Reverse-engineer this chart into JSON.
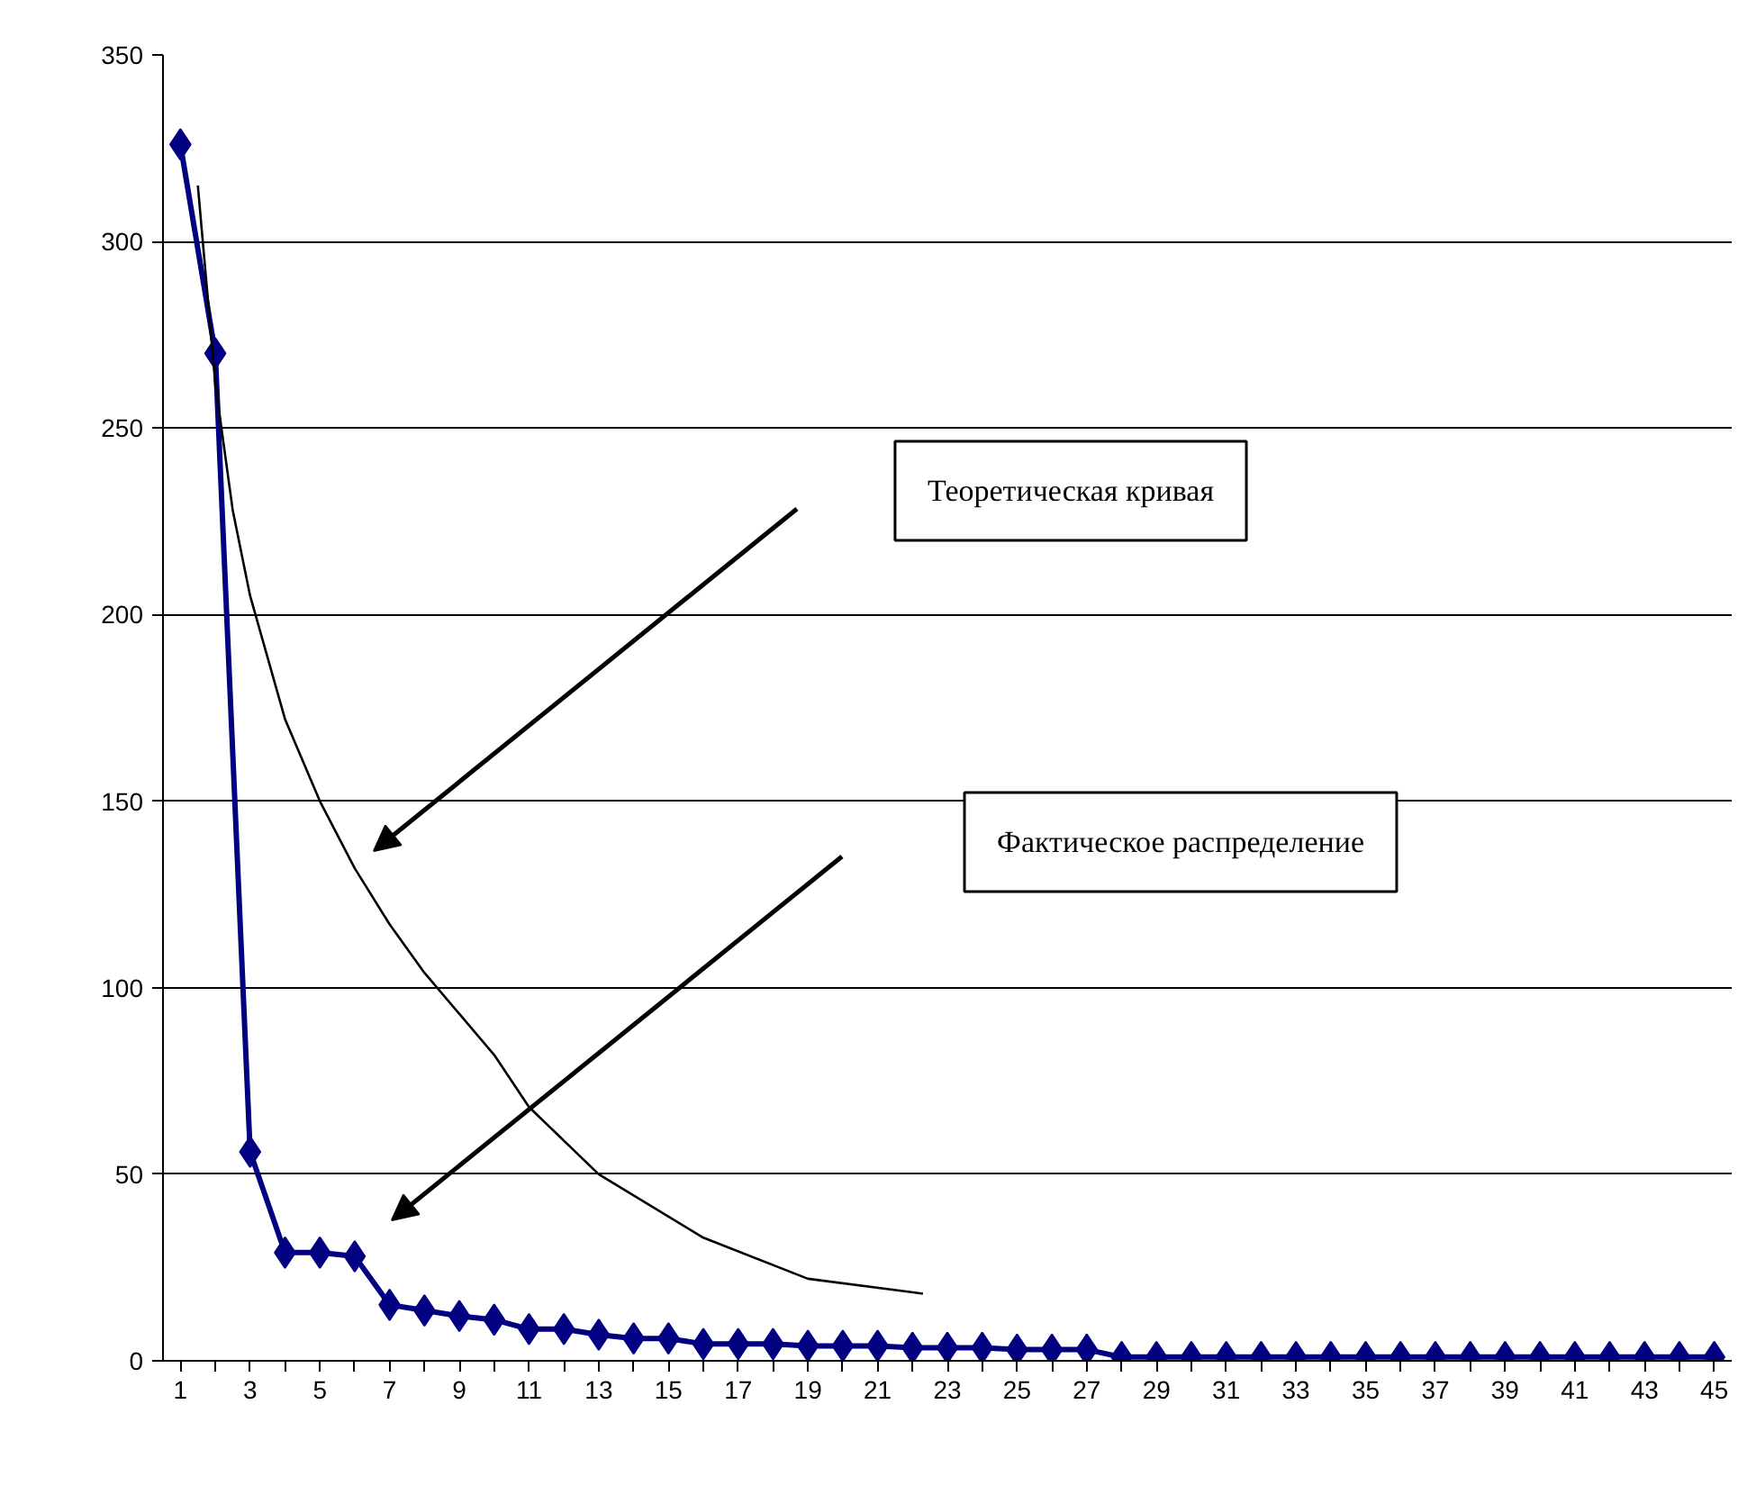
{
  "chart_data": {
    "type": "line",
    "x": [
      1,
      2,
      3,
      4,
      5,
      6,
      7,
      8,
      9,
      10,
      11,
      12,
      13,
      14,
      15,
      16,
      17,
      18,
      19,
      20,
      21,
      22,
      23,
      24,
      25,
      26,
      27,
      28,
      29,
      30,
      31,
      32,
      33,
      34,
      35,
      36,
      37,
      38,
      39,
      40,
      41,
      42,
      43,
      44,
      45
    ],
    "series": [
      {
        "color": "#000080",
        "marker": "diamond",
        "values": [
          326,
          270,
          56,
          29,
          29,
          28,
          15,
          13.5,
          12,
          11,
          8.5,
          8.5,
          7,
          6,
          6,
          4.5,
          4.5,
          4.5,
          4,
          4,
          4,
          3.5,
          3.5,
          3.5,
          3,
          3,
          3,
          1,
          1,
          1,
          1,
          1,
          1,
          1,
          1,
          1,
          1,
          1,
          1,
          1,
          1,
          1,
          1,
          1,
          1
        ]
      },
      {
        "color": "#000000",
        "marker": "none",
        "x": [
          1.5,
          2,
          2.5,
          3,
          4,
          5,
          6,
          7,
          8,
          10,
          11,
          13,
          16,
          19,
          22.3
        ],
        "values": [
          315,
          262,
          228,
          205,
          172,
          150,
          132,
          117,
          104,
          82,
          68,
          50,
          33,
          22,
          18
        ]
      }
    ],
    "xlim": [
      0.5,
      45.5
    ],
    "xticks": [
      1,
      {
        "value": 2,
        "label": null
      },
      3,
      {
        "value": 4,
        "label": null
      },
      5,
      {
        "value": 6,
        "label": null
      },
      7,
      {
        "value": 8,
        "label": null
      },
      9,
      {
        "value": 10,
        "label": null
      },
      11,
      {
        "value": 12,
        "label": null
      },
      13,
      {
        "value": 14,
        "label": null
      },
      15,
      {
        "value": 16,
        "label": null
      },
      17,
      {
        "value": 18,
        "label": null
      },
      19,
      {
        "value": 20,
        "label": null
      },
      21,
      {
        "value": 22,
        "label": null
      },
      23,
      {
        "value": 24,
        "label": null
      },
      25,
      {
        "value": 26,
        "label": null
      },
      27,
      {
        "value": 28,
        "label": null
      },
      29,
      {
        "value": 30,
        "label": null
      },
      31,
      {
        "value": 32,
        "label": null
      },
      33,
      {
        "value": 34,
        "label": null
      },
      35,
      {
        "value": 36,
        "label": null
      },
      37,
      {
        "value": 38,
        "label": null
      },
      39,
      {
        "value": 40,
        "label": null
      },
      41,
      {
        "value": 42,
        "label": null
      },
      43,
      {
        "value": 44,
        "label": null
      },
      45
    ],
    "ylim": [
      0,
      350
    ],
    "yticks": [
      0,
      50,
      100,
      150,
      200,
      250,
      300,
      350
    ],
    "grid": "y",
    "annotations": [
      "Теоретическая кривая",
      "Фактическое распределение"
    ]
  }
}
